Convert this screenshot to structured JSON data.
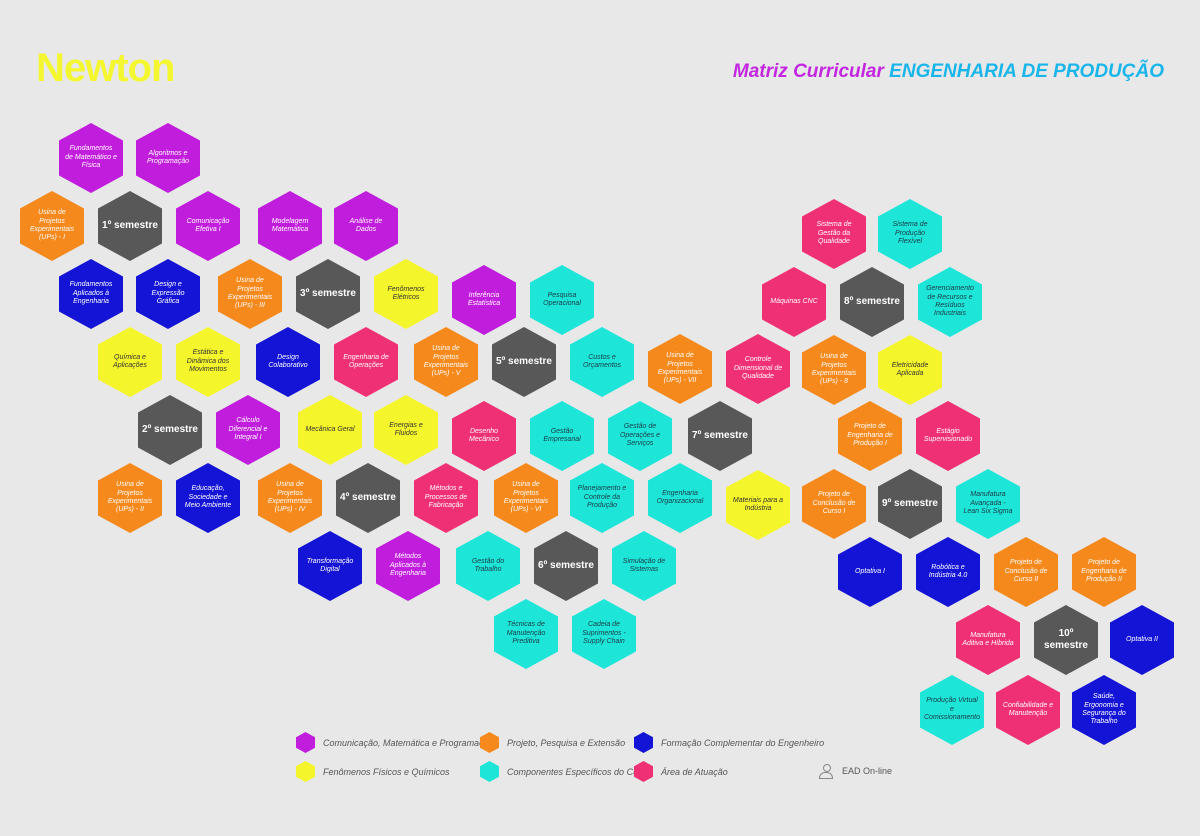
{
  "header": {
    "logo": "Newton",
    "title_part1": "Matriz Curricular",
    "title_part2": "ENGENHARIA DE PRODUÇÃO"
  },
  "hexes": [
    {
      "label": "Fundamentos de Matemático e Física",
      "color": "purple"
    },
    {
      "label": "Algoritmos e Programação",
      "color": "purple"
    },
    {
      "label": "Usina de Projetos Experimentais (UPs) - I",
      "color": "orange"
    },
    {
      "label": "1º semestre",
      "color": "gray"
    },
    {
      "label": "Comunicação Efetiva I",
      "color": "purple"
    },
    {
      "label": "Modelagem Matemática",
      "color": "purple"
    },
    {
      "label": "Análise de Dados",
      "color": "purple"
    },
    {
      "label": "Fundamentos Aplicados à Engenharia",
      "color": "blue"
    },
    {
      "label": "Design e Expressão Gráfica",
      "color": "blue"
    },
    {
      "label": "Usina de Projetos Experimentais (UPs) - III",
      "color": "orange"
    },
    {
      "label": "3º semestre",
      "color": "gray"
    },
    {
      "label": "Fenômenos Elétricos",
      "color": "yellow"
    },
    {
      "label": "Inferência Estatística",
      "color": "purple"
    },
    {
      "label": "Pesquisa Operacional",
      "color": "cyan"
    },
    {
      "label": "Química e Aplicações",
      "color": "yellow"
    },
    {
      "label": "Estática e Dinâmica dos Movimentos",
      "color": "yellow"
    },
    {
      "label": "Design Colaborativo",
      "color": "blue"
    },
    {
      "label": "Engenharia de Operações",
      "color": "pink"
    },
    {
      "label": "Usina de Projetos Experimentais (UPs) - V",
      "color": "orange"
    },
    {
      "label": "5º semestre",
      "color": "gray"
    },
    {
      "label": "Custos e Orçamentos",
      "color": "cyan"
    },
    {
      "label": "Usina de Projetos Experimentais (UPs) - VII",
      "color": "orange"
    },
    {
      "label": "Controle Dimensional de Qualidade",
      "color": "pink"
    },
    {
      "label": "2º semestre",
      "color": "gray"
    },
    {
      "label": "Cálculo Diferencial e Integral I",
      "color": "purple"
    },
    {
      "label": "Mecânica Geral",
      "color": "yellow"
    },
    {
      "label": "Energias e Fluidos",
      "color": "yellow"
    },
    {
      "label": "Desenho Mecânico",
      "color": "pink"
    },
    {
      "label": "Gestão Empresarial",
      "color": "cyan"
    },
    {
      "label": "Gestão de Operações e Serviços",
      "color": "cyan"
    },
    {
      "label": "7º semestre",
      "color": "gray"
    },
    {
      "label": "Usina de Projetos Experimentais (UPs) - II",
      "color": "orange"
    },
    {
      "label": "Educação, Sociedade e Meio Ambiente",
      "color": "blue"
    },
    {
      "label": "Usina de Projetos Experimentais (UPs) - IV",
      "color": "orange"
    },
    {
      "label": "4º semestre",
      "color": "gray"
    },
    {
      "label": "Métodos e Processos de Fabricação",
      "color": "pink"
    },
    {
      "label": "Usina de Projetos Experimentais (UPs) - VI",
      "color": "orange"
    },
    {
      "label": "Planejamento e Controle da Produção",
      "color": "cyan"
    },
    {
      "label": "Engenharia Organizacional",
      "color": "cyan"
    },
    {
      "label": "Materiais para a Indústria",
      "color": "yellow"
    },
    {
      "label": "Transformação Digital",
      "color": "blue"
    },
    {
      "label": "Métodos Aplicados à Engenharia",
      "color": "purple"
    },
    {
      "label": "Gestão do Trabalho",
      "color": "cyan"
    },
    {
      "label": "6º semestre",
      "color": "gray"
    },
    {
      "label": "Simulação de Sistemas",
      "color": "cyan"
    },
    {
      "label": "Técnicas de Manutenção Preditiva",
      "color": "cyan"
    },
    {
      "label": "Cadeia de Suprimentos - Supply Chain",
      "color": "cyan"
    },
    {
      "label": "Sistema de Gestão da Qualidade",
      "color": "pink"
    },
    {
      "label": "Sistema de Produção Flexível",
      "color": "cyan"
    },
    {
      "label": "Máquinas CNC",
      "color": "pink"
    },
    {
      "label": "8º semestre",
      "color": "gray"
    },
    {
      "label": "Gerenciamento de Recursos e Resíduos Industriais",
      "color": "cyan"
    },
    {
      "label": "Usina de Projetos Experimentais (UPs) - 8",
      "color": "orange"
    },
    {
      "label": "Eletricidade Aplicada",
      "color": "yellow"
    },
    {
      "label": "Projeto de Engenharia de Produção I",
      "color": "orange"
    },
    {
      "label": "Estágio Supervisionado",
      "color": "pink"
    },
    {
      "label": "Projeto de Conclusão de Curso I",
      "color": "orange"
    },
    {
      "label": "9º semestre",
      "color": "gray"
    },
    {
      "label": "Manufatura Avançada - Lean Six Sigma",
      "color": "cyan"
    },
    {
      "label": "Optativa I",
      "color": "blue"
    },
    {
      "label": "Robótica e Indústria 4.0",
      "color": "blue"
    },
    {
      "label": "Projeto de Conclusão de Curso II",
      "color": "orange"
    },
    {
      "label": "Projeto de Engenharia de Produção II",
      "color": "orange"
    },
    {
      "label": "Manufatura Aditiva e Híbrida",
      "color": "pink"
    },
    {
      "label": "10º semestre",
      "color": "gray"
    },
    {
      "label": "Optativa II",
      "color": "blue"
    },
    {
      "label": "Produção Virtual e Comissionamento",
      "color": "cyan"
    },
    {
      "label": "Confiabilidade e Manutenção",
      "color": "pink"
    },
    {
      "label": "Saúde, Ergonomia e Segurança do Trabalho",
      "color": "blue"
    }
  ],
  "legend": {
    "items": [
      {
        "label": "Comunicação, Matemática e Programação",
        "color": "#c11ddd"
      },
      {
        "label": "Projeto, Pesquisa e Extensão",
        "color": "#f5891c"
      },
      {
        "label": "Formação Complementar do Engenheiro",
        "color": "#1414d6"
      },
      {
        "label": "Fenômenos Físicos e Químicos",
        "color": "#f5f52c"
      },
      {
        "label": "Componentes Específicos do Curso",
        "color": "#1de5d8"
      },
      {
        "label": "Área de Atuação",
        "color": "#f03075"
      }
    ],
    "ead_label": "EAD On-line"
  },
  "colors": {
    "purple": "#c11ddd",
    "orange": "#f5891c",
    "blue": "#1414d6",
    "yellow": "#f5f52c",
    "cyan": "#1de5d8",
    "pink": "#f03075",
    "gray": "#585858",
    "background": "#e8e8e9",
    "logo": "#f4f730"
  }
}
